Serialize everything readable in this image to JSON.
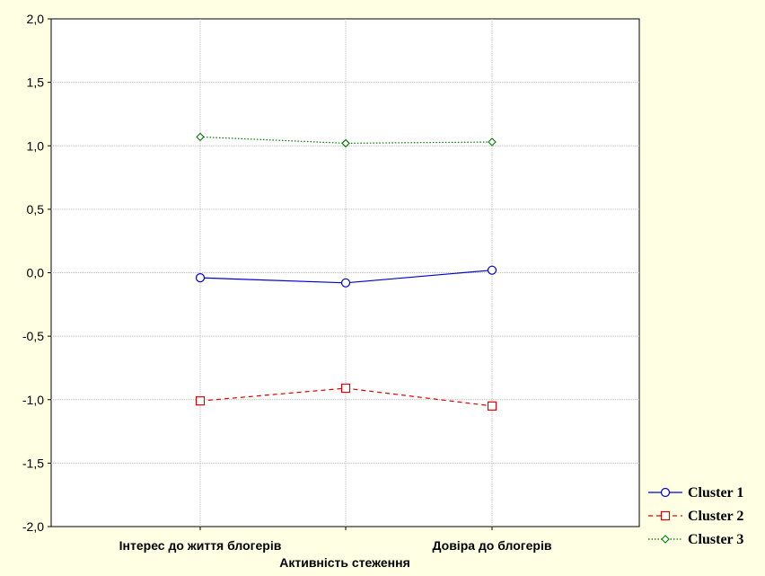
{
  "chart_data": {
    "type": "line",
    "xlabel": "Активність стеження",
    "ylabel": "",
    "ylim": [
      -2.0,
      2.0
    ],
    "yticks": [
      2.0,
      1.5,
      1.0,
      0.5,
      0.0,
      -0.5,
      -1.0,
      -1.5,
      -2.0
    ],
    "ytick_labels": [
      "2,0",
      "1,5",
      "1,0",
      "0,5",
      "0,0",
      "-0,5",
      "-1,0",
      "-1,5",
      "-2,0"
    ],
    "categories": [
      "Інтерес до життя блогерів",
      "",
      "Довіра до блогерів"
    ],
    "grid": true,
    "legend_position": "bottom-right",
    "series": [
      {
        "name": "Cluster 1",
        "values": [
          -0.04,
          -0.08,
          0.02
        ],
        "color": "#0000CC",
        "line_style": "solid",
        "marker": "circle"
      },
      {
        "name": "Cluster 2",
        "values": [
          -1.01,
          -0.91,
          -1.05
        ],
        "color": "#E00000",
        "line_style": "dashed",
        "marker": "square"
      },
      {
        "name": "Cluster 3",
        "values": [
          1.07,
          1.02,
          1.03
        ],
        "color": "#007700",
        "line_style": "dotted",
        "marker": "diamond"
      }
    ]
  },
  "colors": {
    "background": "#FFFFE3",
    "plot_background": "#FFFFFF",
    "grid": "#BDBDBD"
  }
}
